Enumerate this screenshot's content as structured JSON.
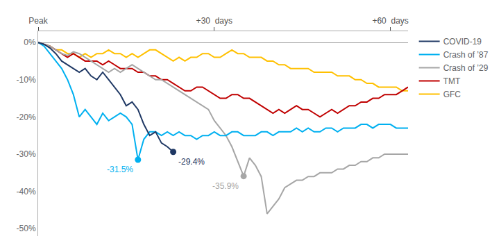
{
  "chart_data": {
    "type": "line",
    "xlim": [
      0,
      63
    ],
    "xticks": [
      {
        "value": 0,
        "label": "Peak"
      },
      {
        "value": 30,
        "label": "+30  days"
      },
      {
        "value": 60,
        "label": "+60  days"
      }
    ],
    "ylim": [
      -52,
      3
    ],
    "yticks": [
      {
        "value": 0,
        "label": "0%"
      },
      {
        "value": -10,
        "label": "-10%"
      },
      {
        "value": -20,
        "label": "-20%"
      },
      {
        "value": -30,
        "label": "-30%"
      },
      {
        "value": -40,
        "label": "-40%"
      },
      {
        "value": -50,
        "label": "-50%"
      }
    ],
    "grid": false,
    "legend": "right",
    "series": [
      {
        "name": "COVID-19",
        "color": "#1f3864",
        "x": [
          0,
          1,
          2,
          3,
          4,
          5,
          6,
          7,
          8,
          9,
          10,
          11,
          12,
          13,
          14,
          15,
          16,
          17,
          18,
          19,
          20,
          21,
          22,
          23
        ],
        "values": [
          0,
          -0.5,
          -1.5,
          -3,
          -5,
          -6,
          -7,
          -8,
          -7,
          -9,
          -10,
          -8,
          -10,
          -12,
          -14,
          -17,
          -16,
          -18,
          -22,
          -25,
          -24,
          -27,
          -28,
          -29.4
        ]
      },
      {
        "name": "Crash of ’87",
        "color": "#00b0f0",
        "x": [
          0,
          1,
          2,
          3,
          4,
          5,
          6,
          7,
          8,
          9,
          10,
          11,
          12,
          13,
          14,
          15,
          16,
          17,
          18,
          19,
          20,
          21,
          22,
          23,
          24,
          25,
          26,
          27,
          28,
          29,
          30,
          31,
          32,
          33,
          34,
          35,
          36,
          37,
          38,
          39,
          40,
          41,
          42,
          43,
          44,
          45,
          46,
          47,
          48,
          49,
          50,
          51,
          52,
          53,
          54,
          55,
          56,
          57,
          58,
          59,
          60,
          61,
          62,
          63
        ],
        "values": [
          0,
          -1,
          -3,
          -5,
          -7,
          -10,
          -14,
          -20,
          -18,
          -20,
          -22,
          -19,
          -21,
          -20,
          -19,
          -20,
          -22,
          -31.5,
          -26,
          -24,
          -24,
          -25,
          -24,
          -25,
          -24,
          -25,
          -25,
          -26,
          -25,
          -25,
          -24,
          -25,
          -25,
          -24,
          -24,
          -25,
          -25,
          -25,
          -24,
          -24,
          -25,
          -24,
          -24,
          -24,
          -23,
          -24,
          -23,
          -24,
          -24,
          -23,
          -23,
          -24,
          -23,
          -23,
          -23,
          -22,
          -22,
          -23,
          -22,
          -22,
          -22,
          -23,
          -23,
          -23
        ]
      },
      {
        "name": "Crash of ’29",
        "color": "#a6a6a6",
        "x": [
          0,
          1,
          2,
          3,
          4,
          5,
          6,
          7,
          8,
          9,
          10,
          11,
          12,
          13,
          14,
          15,
          16,
          17,
          18,
          19,
          20,
          21,
          22,
          23,
          24,
          25,
          26,
          27,
          28,
          29,
          30,
          31,
          32,
          33,
          34,
          35,
          36,
          37,
          38,
          39,
          40,
          41,
          42,
          43,
          44,
          45,
          46,
          47,
          48,
          49,
          50,
          51,
          52,
          53,
          54,
          55,
          56,
          57,
          58,
          59,
          60,
          61,
          62,
          63
        ],
        "values": [
          0,
          -0.5,
          -1,
          -2,
          -3,
          -3.5,
          -2.5,
          -3,
          -4,
          -5,
          -6,
          -7,
          -8,
          -7,
          -8,
          -7,
          -6,
          -7,
          -8,
          -9,
          -10,
          -10,
          -11,
          -12,
          -13,
          -14,
          -15,
          -16,
          -17,
          -18,
          -21,
          -23,
          -25,
          -28,
          -32,
          -35.9,
          -31,
          -33,
          -36,
          -46,
          -44,
          -42,
          -39,
          -38,
          -37,
          -37,
          -36,
          -36,
          -35,
          -35,
          -35,
          -34,
          -34,
          -33,
          -33,
          -32,
          -32,
          -31,
          -31,
          -30,
          -30,
          -30,
          -30,
          -30
        ]
      },
      {
        "name": "TMT",
        "color": "#c00000",
        "x": [
          0,
          1,
          2,
          3,
          4,
          5,
          6,
          7,
          8,
          9,
          10,
          11,
          12,
          13,
          14,
          15,
          16,
          17,
          18,
          19,
          20,
          21,
          22,
          23,
          24,
          25,
          26,
          27,
          28,
          29,
          30,
          31,
          32,
          33,
          34,
          35,
          36,
          37,
          38,
          39,
          40,
          41,
          42,
          43,
          44,
          45,
          46,
          47,
          48,
          49,
          50,
          51,
          52,
          53,
          54,
          55,
          56,
          57,
          58,
          59,
          60,
          61,
          62,
          63
        ],
        "values": [
          0,
          -0.5,
          -1,
          -2,
          -3,
          -4,
          -3,
          -4,
          -5,
          -5,
          -5,
          -6,
          -5,
          -6,
          -7,
          -7,
          -7,
          -8,
          -8,
          -9,
          -9,
          -10,
          -10,
          -11,
          -12,
          -13,
          -13,
          -12,
          -12,
          -13,
          -14,
          -15,
          -15,
          -14,
          -14,
          -15,
          -15,
          -16,
          -17,
          -18,
          -19,
          -18,
          -19,
          -18,
          -17,
          -18,
          -18,
          -19,
          -20,
          -19,
          -18,
          -19,
          -18,
          -17,
          -17,
          -16,
          -16,
          -15,
          -15,
          -14,
          -14,
          -14,
          -13,
          -12
        ]
      },
      {
        "name": "GFC",
        "color": "#ffc000",
        "x": [
          0,
          1,
          2,
          3,
          4,
          5,
          6,
          7,
          8,
          9,
          10,
          11,
          12,
          13,
          14,
          15,
          16,
          17,
          18,
          19,
          20,
          21,
          22,
          23,
          24,
          25,
          26,
          27,
          28,
          29,
          30,
          31,
          32,
          33,
          34,
          35,
          36,
          37,
          38,
          39,
          40,
          41,
          42,
          43,
          44,
          45,
          46,
          47,
          48,
          49,
          50,
          51,
          52,
          53,
          54,
          55,
          56,
          57,
          58,
          59,
          60,
          61,
          62,
          63
        ],
        "values": [
          0,
          -0.5,
          -1,
          -2,
          -2,
          -3,
          -3,
          -4,
          -3,
          -4,
          -3,
          -3,
          -2,
          -3,
          -3,
          -4,
          -3,
          -4,
          -3,
          -2,
          -2,
          -3,
          -4,
          -5,
          -4,
          -5,
          -4,
          -4,
          -3,
          -3,
          -4,
          -4,
          -3,
          -2,
          -3,
          -3,
          -4,
          -4,
          -4,
          -5,
          -5,
          -6,
          -6,
          -7,
          -7,
          -7,
          -7,
          -8,
          -8,
          -8,
          -8,
          -9,
          -9,
          -9,
          -10,
          -10,
          -11,
          -11,
          -12,
          -12,
          -12,
          -12,
          -13,
          -13
        ]
      }
    ],
    "annotations": [
      {
        "text": "-29.4%",
        "x": 23,
        "y": -29.4,
        "color": "#1f3864",
        "marker": "circle"
      },
      {
        "text": "-31.5%",
        "x": 17,
        "y": -31.5,
        "color": "#00b0f0",
        "marker": "circle"
      },
      {
        "text": "-35.9%",
        "x": 35,
        "y": -35.9,
        "color": "#a6a6a6",
        "marker": "circle"
      }
    ]
  }
}
